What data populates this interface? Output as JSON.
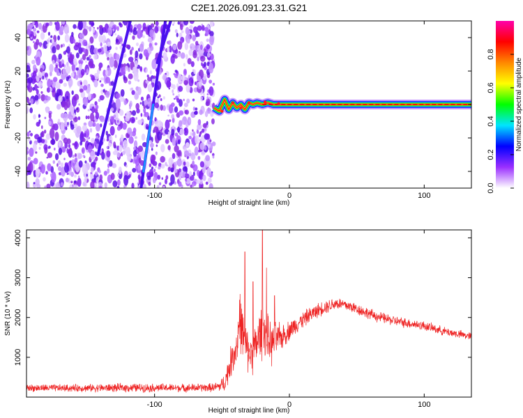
{
  "title": "C2E1.2026.091.23.31.G21",
  "chart_data": [
    {
      "type": "heatmap",
      "name": "spectrogram",
      "xlabel": "Height of straight line (km)",
      "ylabel": "Frequency (Hz)",
      "xlim": [
        -195,
        135
      ],
      "ylim": [
        -50,
        50
      ],
      "xticks": [
        -100,
        0,
        100
      ],
      "yticks": [
        -40,
        -20,
        0,
        20,
        40
      ],
      "noise_region_x": [
        -195,
        -56
      ],
      "signal_trace": {
        "x": [
          -56,
          -52,
          -48,
          -45,
          -42,
          -39,
          -36,
          -33,
          -30,
          -27,
          -24,
          -20,
          -16,
          -12,
          -8,
          0,
          30,
          60,
          90,
          110,
          135
        ],
        "y": [
          -2,
          -4,
          3,
          -3,
          1,
          -2,
          0,
          -3,
          1,
          0,
          1,
          0,
          1,
          0,
          0,
          0,
          0,
          0,
          0,
          0,
          0
        ]
      },
      "diagonal_streaks": [
        {
          "x": [
            -142,
            -118
          ],
          "y": [
            -30,
            50
          ]
        },
        {
          "x": [
            -110,
            -92
          ],
          "y": [
            -50,
            50
          ]
        },
        {
          "x": [
            -98,
            -88
          ],
          "y": [
            25,
            50
          ]
        }
      ],
      "colorbar": {
        "label": "Normalized spectral amplitude",
        "range": [
          0.0,
          1.0
        ],
        "ticks": [
          "0.0",
          "0.2",
          "0.4",
          "0.6",
          "0.8"
        ],
        "colors": [
          "#ffffff",
          "#9b30ff",
          "#0000ff",
          "#00e5ff",
          "#00ff00",
          "#ffff00",
          "#ff8800",
          "#ff0000",
          "#ff00aa"
        ]
      }
    },
    {
      "type": "line",
      "name": "snr",
      "xlabel": "Height of straight line (km)",
      "ylabel": "SNR (10 * v/v)",
      "xlim": [
        -195,
        135
      ],
      "ylim": [
        0,
        4200
      ],
      "xticks": [
        -100,
        0,
        100
      ],
      "yticks": [
        1000,
        2000,
        3000,
        4000
      ],
      "line_color": "#ee2222",
      "envelope": {
        "x": [
          -195,
          -160,
          -120,
          -80,
          -56,
          -52,
          -48,
          -45,
          -42,
          -39,
          -37,
          -34,
          -31,
          -28,
          -25,
          -22,
          -19,
          -16,
          -13,
          -10,
          -6,
          -2,
          5,
          15,
          25,
          35,
          45,
          55,
          65,
          80,
          100,
          115,
          135
        ],
        "center": [
          230,
          225,
          235,
          230,
          240,
          270,
          360,
          700,
          1050,
          1250,
          2000,
          1500,
          1150,
          1100,
          1250,
          1550,
          1750,
          1450,
          1300,
          1450,
          1500,
          1620,
          1820,
          2060,
          2250,
          2360,
          2280,
          2150,
          2020,
          1900,
          1790,
          1650,
          1520
        ],
        "spread": [
          110,
          110,
          130,
          120,
          130,
          170,
          260,
          420,
          520,
          620,
          900,
          750,
          600,
          620,
          700,
          800,
          850,
          700,
          600,
          520,
          400,
          320,
          260,
          230,
          210,
          190,
          180,
          170,
          160,
          150,
          140,
          130,
          120
        ]
      },
      "peaks": [
        {
          "x": -33,
          "y": 3650
        },
        {
          "x": -20,
          "y": 4200
        },
        {
          "x": -17,
          "y": 3250
        },
        {
          "x": -27,
          "y": 2900
        },
        {
          "x": -11,
          "y": 2550
        }
      ]
    }
  ]
}
